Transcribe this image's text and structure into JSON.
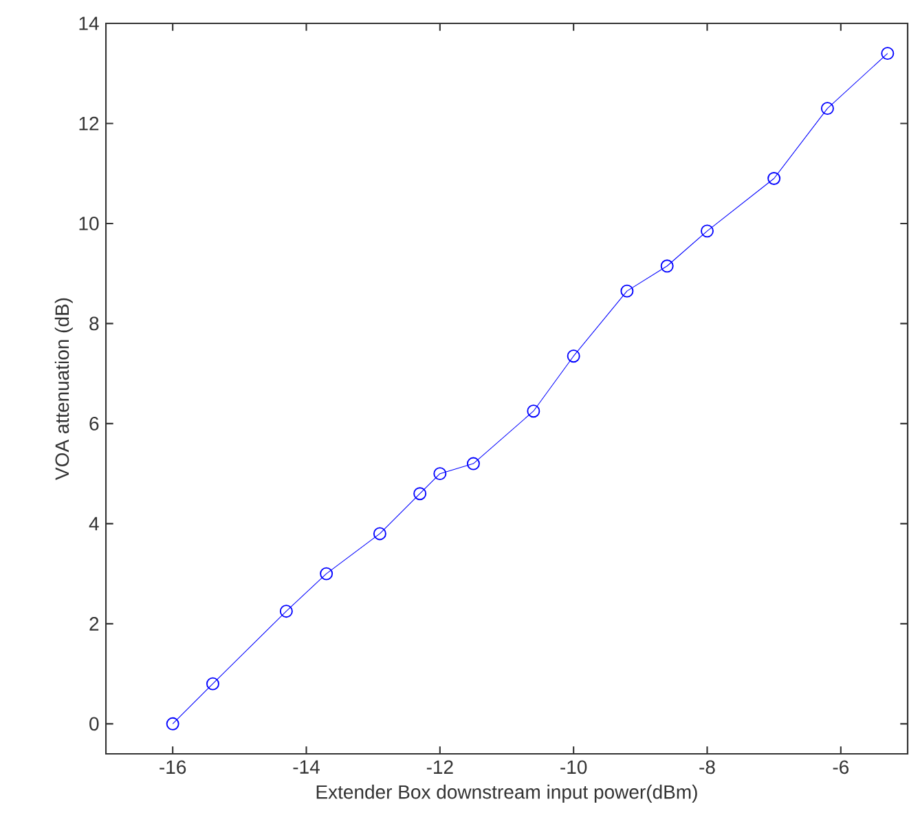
{
  "chart_data": {
    "type": "line",
    "xlabel": "Extender Box downstream input power(dBm)",
    "ylabel": "VOA attenuation (dB)",
    "x": [
      -16,
      -15.4,
      -14.3,
      -13.7,
      -12.9,
      -12.3,
      -12,
      -11.5,
      -10.6,
      -10,
      -9.2,
      -8.6,
      -8,
      -7,
      -6.2,
      -5.3
    ],
    "series": [
      {
        "color": "#0000ff",
        "values": [
          0,
          0.8,
          2.25,
          3.0,
          3.8,
          4.6,
          5.0,
          5.2,
          6.25,
          7.35,
          8.65,
          9.15,
          9.85,
          10.9,
          12.3,
          13.4
        ]
      }
    ],
    "xlim": [
      -17,
      -5
    ],
    "ylim": [
      -0.6,
      14
    ],
    "xticks": [
      -16,
      -14,
      -12,
      -10,
      -8,
      -6
    ],
    "yticks": [
      0,
      2,
      4,
      6,
      8,
      10,
      12,
      14
    ],
    "marker": "circle",
    "line_style": "solid"
  }
}
